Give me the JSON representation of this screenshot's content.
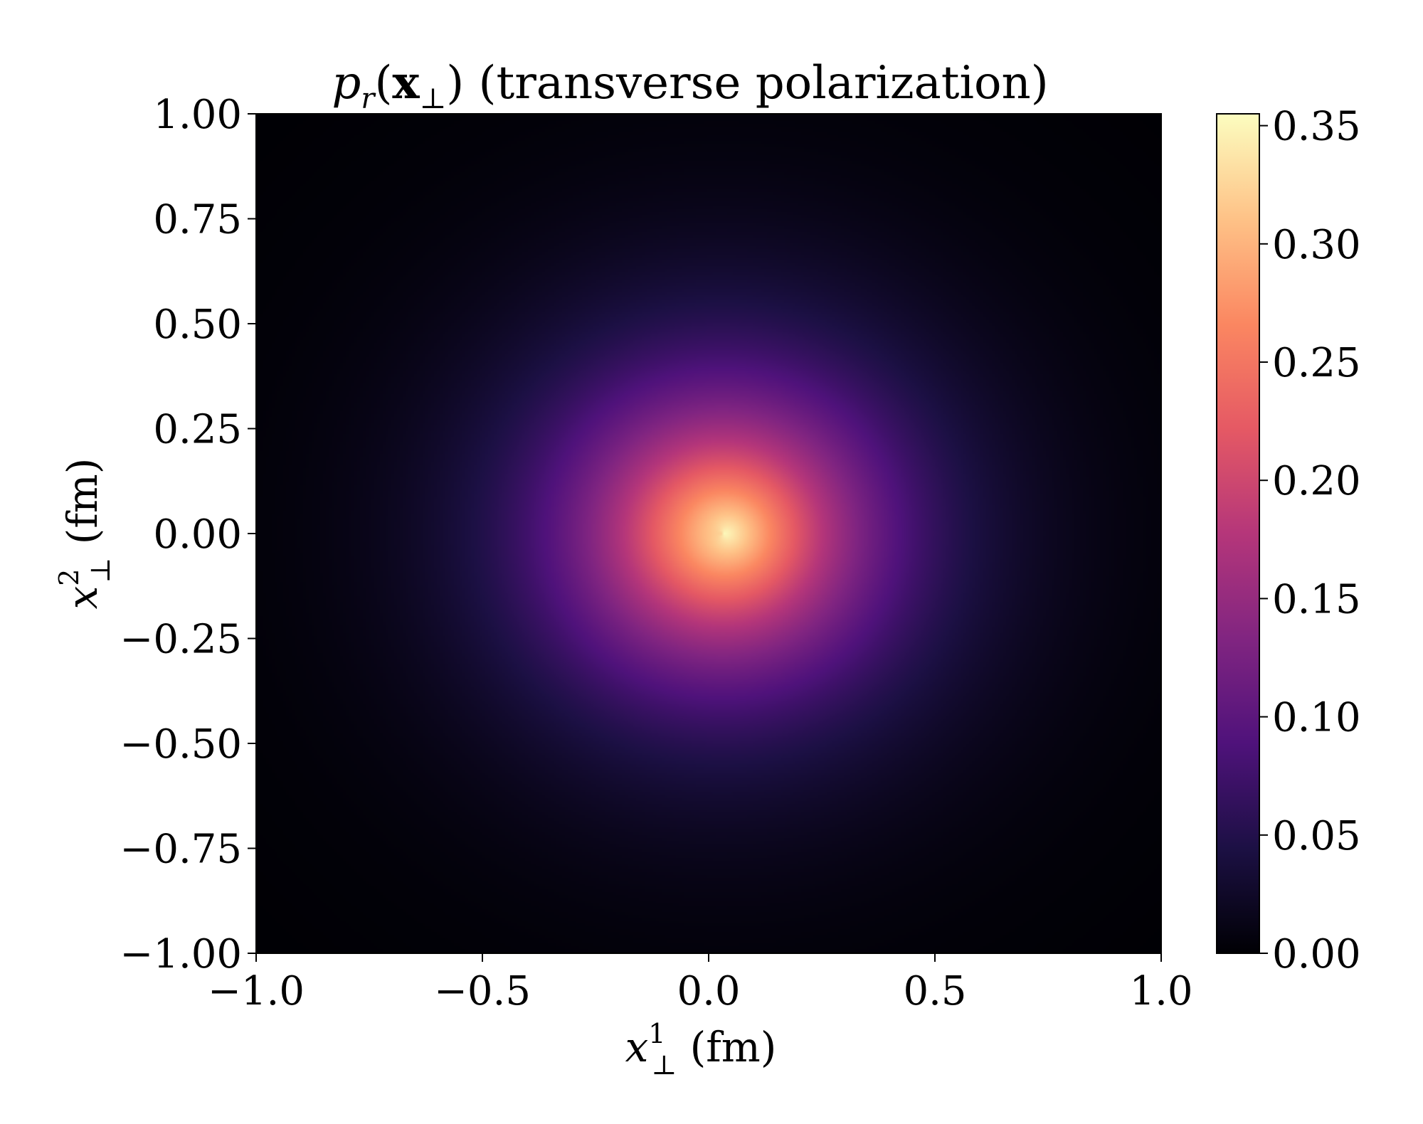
{
  "chart_data": {
    "type": "heatmap",
    "title": "p_r(x_⊥) (transverse polarization)",
    "title_parts": {
      "symbol": "p",
      "sub": "r",
      "paren_open": "(",
      "vec": "x",
      "vec_sub": "⊥",
      "paren_close": ")",
      "rest": " (transverse polarization)"
    },
    "xlabel": "x¹⊥ (fm)",
    "xlabel_parts": {
      "var": "x",
      "sup": "1",
      "sub": "⊥",
      "unit": " (fm)"
    },
    "ylabel": "x²⊥ (fm)",
    "ylabel_parts": {
      "var": "x",
      "sup": "2",
      "sub": "⊥",
      "unit": " (fm)"
    },
    "xlim": [
      -1.0,
      1.0
    ],
    "ylim": [
      -1.0,
      1.0
    ],
    "x_ticks": [
      {
        "value": -1.0,
        "label": "−1.0"
      },
      {
        "value": -0.5,
        "label": "−0.5"
      },
      {
        "value": 0.0,
        "label": "0.0"
      },
      {
        "value": 0.5,
        "label": "0.5"
      },
      {
        "value": 1.0,
        "label": "1.0"
      }
    ],
    "y_ticks": [
      {
        "value": 1.0,
        "label": "1.00"
      },
      {
        "value": 0.75,
        "label": "0.75"
      },
      {
        "value": 0.5,
        "label": "0.50"
      },
      {
        "value": 0.25,
        "label": "0.25"
      },
      {
        "value": 0.0,
        "label": "0.00"
      },
      {
        "value": -0.25,
        "label": "−0.25"
      },
      {
        "value": -0.5,
        "label": "−0.50"
      },
      {
        "value": -0.75,
        "label": "−0.75"
      },
      {
        "value": -1.0,
        "label": "−1.00"
      }
    ],
    "colorbar": {
      "colormap": "magma",
      "range": [
        0.0,
        0.355
      ],
      "ticks": [
        {
          "value": 0.0,
          "label": "0.00"
        },
        {
          "value": 0.05,
          "label": "0.05"
        },
        {
          "value": 0.1,
          "label": "0.10"
        },
        {
          "value": 0.15,
          "label": "0.15"
        },
        {
          "value": 0.2,
          "label": "0.20"
        },
        {
          "value": 0.25,
          "label": "0.25"
        },
        {
          "value": 0.3,
          "label": "0.30"
        },
        {
          "value": 0.35,
          "label": "0.35"
        }
      ]
    },
    "peak": {
      "x": 0.03,
      "y": 0.0,
      "value": 0.355
    },
    "grid": false,
    "colors": {
      "magma_stops": [
        "#000004",
        "#1c1044",
        "#4f127b",
        "#812581",
        "#b5367a",
        "#e55964",
        "#fb8761",
        "#fec287",
        "#fcfdbf"
      ]
    }
  }
}
